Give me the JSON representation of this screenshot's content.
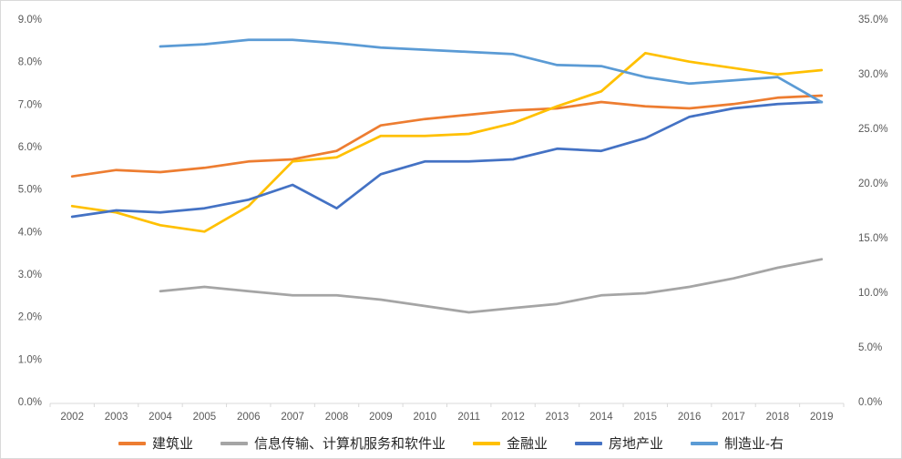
{
  "chart_data": {
    "type": "line",
    "title": "",
    "x": [
      "2002",
      "2003",
      "2004",
      "2005",
      "2006",
      "2007",
      "2008",
      "2009",
      "2010",
      "2011",
      "2012",
      "2013",
      "2014",
      "2015",
      "2016",
      "2017",
      "2018",
      "2019"
    ],
    "axis_left": {
      "min": 0,
      "max": 9,
      "step": 1,
      "tick_labels": [
        "0.0%",
        "1.0%",
        "2.0%",
        "3.0%",
        "4.0%",
        "5.0%",
        "6.0%",
        "7.0%",
        "8.0%",
        "9.0%"
      ]
    },
    "axis_right": {
      "min": 0,
      "max": 35,
      "step": 5,
      "tick_labels": [
        "0.0%",
        "5.0%",
        "10.0%",
        "15.0%",
        "20.0%",
        "25.0%",
        "30.0%",
        "35.0%"
      ]
    },
    "grid": "off",
    "legend_position": "bottom",
    "series": [
      {
        "id": "construction",
        "name": "建筑业",
        "color": "#ED7D31",
        "axis": "left",
        "values": [
          5.3,
          5.45,
          5.4,
          5.5,
          5.65,
          5.7,
          5.9,
          6.5,
          6.65,
          6.75,
          6.85,
          6.9,
          7.05,
          6.95,
          6.9,
          7.0,
          7.15,
          7.2
        ]
      },
      {
        "id": "it-software",
        "name": "信息传输、计算机服务和软件业",
        "color": "#A5A5A5",
        "axis": "left",
        "values": [
          null,
          null,
          2.6,
          2.7,
          2.6,
          2.5,
          2.5,
          2.4,
          2.25,
          2.1,
          2.2,
          2.3,
          2.5,
          2.55,
          2.7,
          2.9,
          3.15,
          3.35
        ]
      },
      {
        "id": "finance",
        "name": "金融业",
        "color": "#FFC000",
        "axis": "left",
        "values": [
          4.6,
          4.45,
          4.15,
          4.0,
          4.6,
          5.65,
          5.75,
          6.25,
          6.25,
          6.3,
          6.55,
          6.95,
          7.3,
          8.2,
          8.0,
          7.85,
          7.7,
          7.8
        ]
      },
      {
        "id": "real-estate",
        "name": "房地产业",
        "color": "#4472C4",
        "axis": "left",
        "values": [
          4.35,
          4.5,
          4.45,
          4.55,
          4.75,
          5.1,
          4.55,
          5.35,
          5.65,
          5.65,
          5.7,
          5.95,
          5.9,
          6.2,
          6.7,
          6.9,
          7.0,
          7.05
        ]
      },
      {
        "id": "manufacturing",
        "name": "制造业-右",
        "color": "#5B9BD5",
        "axis": "right",
        "values": [
          null,
          null,
          32.5,
          32.7,
          33.1,
          33.1,
          32.8,
          32.4,
          32.2,
          32.0,
          31.8,
          30.8,
          30.7,
          29.7,
          29.1,
          29.4,
          29.7,
          27.4
        ]
      }
    ],
    "colors": {
      "background": "#FFFFFF",
      "border": "#D9D9D9",
      "axis_line": "#D9D9D9",
      "tick_label": "#595959",
      "legend_text": "#262626"
    }
  }
}
